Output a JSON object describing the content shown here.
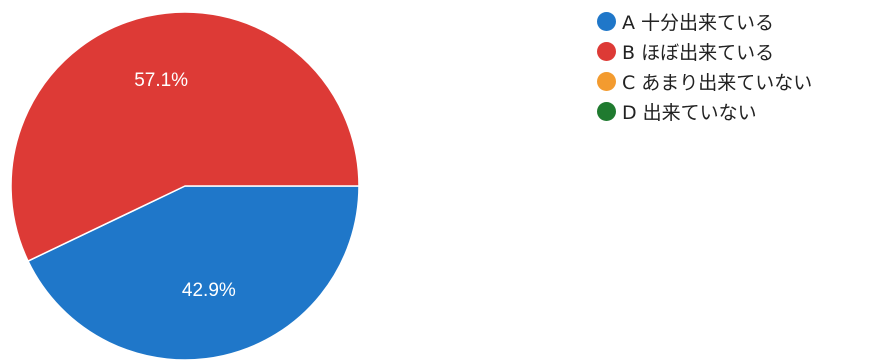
{
  "chart_data": {
    "type": "pie",
    "title": "",
    "categories": [
      "A 十分出来ている",
      "B ほぼ出来ている",
      "C あまり出来ていない",
      "D 出来ていない"
    ],
    "values": [
      42.9,
      57.1,
      0,
      0
    ],
    "labels": [
      "42.9%",
      "57.1%",
      "",
      ""
    ],
    "colors": [
      "#1f77c9",
      "#dd3a36",
      "#f39b2f",
      "#1f7a2f"
    ],
    "legend_position": "right",
    "start_angle_deg": 0,
    "direction": "clockwise"
  }
}
